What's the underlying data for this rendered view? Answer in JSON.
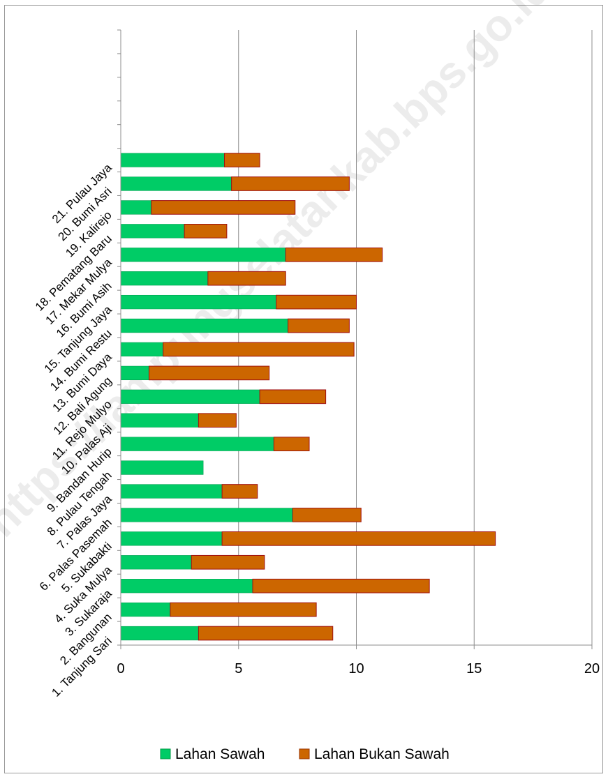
{
  "watermark": "https://lampungselatankab.bps.go.id",
  "chart_data": {
    "type": "bar",
    "orientation": "horizontal",
    "stacked": true,
    "title": "",
    "xlabel": "",
    "ylabel": "",
    "xlim": [
      0,
      20
    ],
    "xticks": [
      0,
      5,
      10,
      15,
      20
    ],
    "grid": true,
    "legend_position": "bottom",
    "category_slots": 26,
    "categories": [
      "1. Tanjung Sari",
      "2. Bangunan",
      "3. Sukaraja",
      "4. Suka Mulya",
      "5. Sukabakti",
      "6. Palas Pasemah",
      "7. Palas Jaya",
      "8. Pulau Tengah",
      "9. Bandan Hurip",
      "10. Palas Aji",
      "11. Rejo Mulyo",
      "12. Bali Agung",
      "13. Bumi Daya",
      "14. Bumi Restu",
      "15. Tanjung Jaya",
      "16. Bumi Asih",
      "17. Mekar Mulya",
      "18. Pematang Baru",
      "19. Kalirejo",
      "20. Bumi Asri",
      "21. Pulau Jaya"
    ],
    "series": [
      {
        "name": "Lahan Sawah",
        "color": "#00cc66",
        "values": [
          3.3,
          2.1,
          5.6,
          3.0,
          4.3,
          7.3,
          4.3,
          3.5,
          6.5,
          3.3,
          5.9,
          1.2,
          1.8,
          7.1,
          6.6,
          3.7,
          7.0,
          2.7,
          1.3,
          4.7,
          4.4
        ]
      },
      {
        "name": "Lahan Bukan Sawah",
        "color": "#cc6600",
        "values": [
          5.7,
          6.2,
          7.5,
          3.1,
          11.6,
          2.9,
          1.5,
          0.0,
          1.5,
          1.6,
          2.8,
          5.1,
          8.1,
          2.6,
          3.4,
          3.3,
          4.1,
          1.8,
          6.1,
          5.0,
          1.5
        ]
      }
    ]
  }
}
